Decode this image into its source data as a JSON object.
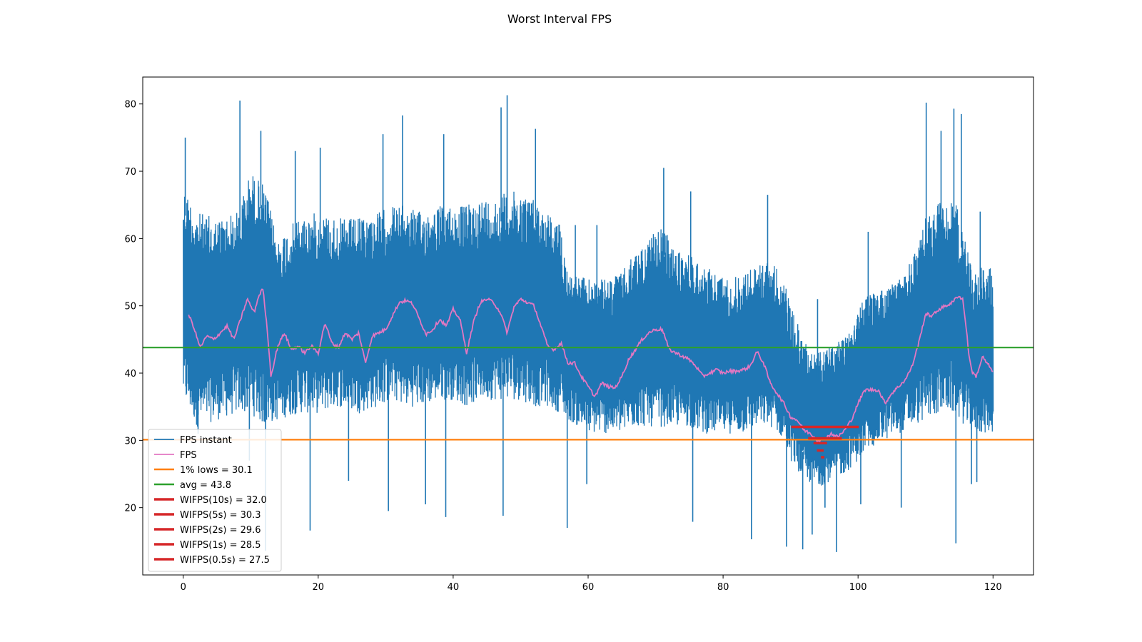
{
  "chart_data": {
    "type": "line",
    "title": "Worst Interval FPS",
    "xlabel": "",
    "ylabel": "",
    "xlim": [
      -6,
      126
    ],
    "ylim": [
      10,
      84
    ],
    "xticks": [
      0,
      20,
      40,
      60,
      80,
      100,
      120
    ],
    "yticks": [
      20,
      30,
      40,
      50,
      60,
      70,
      80
    ],
    "grid": false,
    "legend_position": "lower-left",
    "series": [
      {
        "name": "FPS instant",
        "color": "#1f77b4",
        "kind": "noisy-band",
        "x": [
          0,
          2,
          5,
          8,
          10,
          12,
          14,
          17,
          20,
          23,
          26,
          29,
          31,
          33,
          35,
          38,
          40,
          42,
          44,
          46,
          48,
          50,
          52,
          54,
          56,
          57,
          60,
          63,
          65,
          67,
          69,
          71,
          73,
          75,
          77,
          79,
          81,
          83,
          85,
          87,
          89,
          90,
          92,
          94,
          96,
          98,
          100,
          102,
          104,
          106,
          108,
          110,
          112,
          114,
          115,
          117,
          118,
          120
        ],
        "upper": [
          68,
          64,
          63,
          64,
          70,
          68,
          60,
          63,
          64,
          63,
          63,
          64,
          65,
          65,
          64,
          65,
          65,
          65,
          66,
          66,
          67,
          67,
          66,
          64,
          62,
          55,
          54,
          54,
          55,
          58,
          60,
          62,
          58,
          58,
          56,
          55,
          54,
          55,
          56,
          57,
          54,
          50,
          45,
          43,
          44,
          46,
          50,
          52,
          53,
          54,
          57,
          63,
          66,
          66,
          64,
          55,
          56,
          56
        ],
        "lower": [
          36,
          32,
          33,
          34,
          34,
          32,
          33,
          34,
          34,
          35,
          34,
          35,
          36,
          35,
          35,
          36,
          36,
          35,
          36,
          36,
          36,
          36,
          35,
          35,
          34,
          33,
          31,
          31,
          31,
          32,
          32,
          32,
          32,
          32,
          31,
          31,
          31,
          31,
          32,
          32,
          30,
          27,
          24,
          23,
          24,
          25,
          27,
          29,
          30,
          31,
          32,
          33,
          34,
          34,
          33,
          31,
          31,
          31
        ],
        "peaks": [
          [
            0.3,
            75
          ],
          [
            8.4,
            80.5
          ],
          [
            11.5,
            76
          ],
          [
            16.6,
            73
          ],
          [
            20.3,
            73.5
          ],
          [
            29.6,
            75.5
          ],
          [
            32.5,
            78.3
          ],
          [
            38.6,
            75.5
          ],
          [
            47.1,
            79.5
          ],
          [
            48,
            81.3
          ],
          [
            52.2,
            76.3
          ],
          [
            58.1,
            62
          ],
          [
            61.3,
            62
          ],
          [
            71.2,
            70.5
          ],
          [
            75.2,
            67
          ],
          [
            86.6,
            66.5
          ],
          [
            94,
            51
          ],
          [
            101.5,
            61
          ],
          [
            110.1,
            80.2
          ],
          [
            112.3,
            76
          ],
          [
            114.2,
            79.3
          ],
          [
            115.3,
            78.5
          ],
          [
            118.1,
            64
          ]
        ],
        "dips": [
          [
            2.2,
            31
          ],
          [
            9.8,
            27
          ],
          [
            12.2,
            13.6
          ],
          [
            18.8,
            16.6
          ],
          [
            24.5,
            24
          ],
          [
            30.4,
            19.5
          ],
          [
            35.9,
            20.5
          ],
          [
            38.9,
            18.6
          ],
          [
            47.4,
            18.8
          ],
          [
            56.9,
            17
          ],
          [
            59.8,
            23.5
          ],
          [
            75.5,
            17.9
          ],
          [
            84.2,
            15.3
          ],
          [
            89.4,
            14.2
          ],
          [
            91.8,
            13.8
          ],
          [
            93.2,
            16
          ],
          [
            95.1,
            20
          ],
          [
            96.8,
            13.4
          ],
          [
            100.4,
            20.5
          ],
          [
            106.4,
            20
          ],
          [
            114.5,
            14.7
          ],
          [
            116.8,
            23.5
          ],
          [
            117.6,
            23.8
          ]
        ]
      },
      {
        "name": "FPS",
        "color": "#e377c2",
        "x": [
          0.8,
          1.5,
          2.5,
          3.5,
          4.5,
          5.5,
          6.5,
          7.5,
          8.5,
          9.5,
          10.5,
          11.2,
          11.8,
          12.5,
          13,
          14,
          15,
          16,
          17,
          18,
          19,
          20,
          21,
          22,
          23,
          24,
          25,
          26,
          27,
          28,
          29,
          30,
          31,
          32,
          33,
          34,
          35,
          36,
          37,
          38,
          39,
          40,
          41,
          42,
          43,
          44,
          45,
          46,
          47,
          48,
          49,
          50,
          51,
          52,
          53,
          54,
          55,
          56,
          57,
          58,
          59,
          60,
          61,
          62,
          63,
          64,
          65,
          66,
          67,
          68,
          69,
          70,
          71,
          72,
          73,
          74,
          75,
          76,
          77,
          78,
          79,
          80,
          81,
          82,
          83,
          84,
          85,
          86,
          87,
          88,
          89,
          90,
          91,
          92,
          93,
          94,
          95,
          96,
          97,
          98,
          99,
          100,
          101,
          102,
          103,
          104,
          105,
          106,
          107,
          108,
          109,
          110,
          111,
          112,
          113,
          114,
          114.8,
          115.5,
          116,
          116.5,
          117,
          117.5,
          118,
          118.5,
          119,
          119.5,
          120
        ],
        "y": [
          48.7,
          47,
          43.8,
          45.5,
          45,
          46,
          47,
          45,
          48,
          51,
          49,
          51.5,
          52.6,
          46,
          39.5,
          44,
          46,
          43.5,
          44,
          43,
          44,
          43,
          47.5,
          44.5,
          43.8,
          46,
          45,
          46,
          41.5,
          45.5,
          46,
          46.5,
          48.5,
          50.5,
          50.8,
          50.3,
          48,
          45.8,
          46.5,
          48,
          47,
          49.5,
          48,
          43,
          47.5,
          50.5,
          51,
          50.5,
          49,
          46,
          49.8,
          51,
          50.5,
          50,
          47,
          44,
          43.5,
          44.5,
          41.5,
          41.5,
          39.5,
          38,
          36.5,
          38.5,
          38,
          37.8,
          39.5,
          42,
          43.5,
          45,
          46,
          46.5,
          46.5,
          43.5,
          43,
          42.5,
          42,
          41,
          39.5,
          40,
          40.5,
          40,
          40.3,
          40.3,
          40.5,
          41,
          43.2,
          41.5,
          38.5,
          37,
          35.5,
          33.5,
          33,
          31.5,
          31,
          30,
          30.2,
          31,
          30.5,
          31.5,
          33,
          35.5,
          37.5,
          37.5,
          37.5,
          35.5,
          37,
          38,
          39,
          41,
          44.5,
          48.8,
          48.5,
          49.5,
          50,
          50.5,
          51.5,
          51,
          47,
          42,
          40,
          39.5,
          41,
          42.5,
          41.5,
          41,
          40
        ]
      },
      {
        "name": "1% lows = 30.1",
        "color": "#ff7f0e",
        "kind": "hline",
        "value": 30.1
      },
      {
        "name": "avg = 43.8",
        "color": "#2ca02c",
        "kind": "hline",
        "value": 43.8
      },
      {
        "name": "WIFPS(10s) = 32.0",
        "color": "#d62728",
        "kind": "segment",
        "x0": 90.1,
        "x1": 100.1,
        "value": 32.0
      },
      {
        "name": "WIFPS(5s) = 30.3",
        "color": "#d62728",
        "kind": "segment",
        "x0": 92.6,
        "x1": 97.6,
        "value": 30.3
      },
      {
        "name": "WIFPS(2s) = 29.6",
        "color": "#d62728",
        "kind": "segment",
        "x0": 93.4,
        "x1": 95.4,
        "value": 29.6
      },
      {
        "name": "WIFPS(1s) = 28.5",
        "color": "#d62728",
        "kind": "segment",
        "x0": 93.9,
        "x1": 94.9,
        "value": 28.5
      },
      {
        "name": "WIFPS(0.5s) = 27.5",
        "color": "#d62728",
        "kind": "segment",
        "x0": 94.5,
        "x1": 95.0,
        "value": 27.5
      }
    ]
  }
}
